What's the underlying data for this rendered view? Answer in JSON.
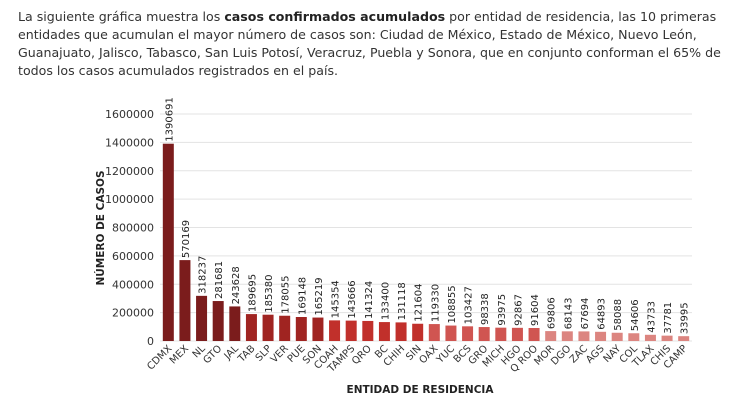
{
  "intro": {
    "before": "La siguiente gráfica muestra los ",
    "bold": "casos confirmados acumulados",
    "after": " por entidad de residencia, las 10 primeras entidades que acumulan el mayor número de casos son: Ciudad de México, Estado de México, Nuevo León, Guanajuato, Jalisco, Tabasco, San Luis Potosí, Veracruz, Puebla y Sonora, que en conjunto conforman el 65% de todos los casos acumulados registrados en el país."
  },
  "chart_data": {
    "type": "bar",
    "xlabel": "ENTIDAD DE RESIDENCIA",
    "ylabel": "NÚMERO DE CASOS",
    "ylim": [
      0,
      1600000
    ],
    "yticks": [
      0,
      200000,
      400000,
      600000,
      800000,
      1000000,
      1200000,
      1400000,
      1600000
    ],
    "grid": true,
    "categories": [
      "CDMX",
      "MEX",
      "NL",
      "GTO",
      "JAL",
      "TAB",
      "SLP",
      "VER",
      "PUE",
      "SON",
      "COAH",
      "TAMPS",
      "QRO",
      "BC",
      "CHIH",
      "SIN",
      "OAX",
      "YUC",
      "BCS",
      "GRO",
      "MICH",
      "HGO",
      "Q ROO",
      "MOR",
      "DGO",
      "ZAC",
      "AGS",
      "NAY",
      "COL",
      "TLAX",
      "CHIS",
      "CAMP"
    ],
    "values": [
      1390691,
      570169,
      318237,
      281681,
      243628,
      189695,
      185380,
      178055,
      169148,
      165219,
      145354,
      143666,
      141324,
      133400,
      131118,
      121604,
      119330,
      108855,
      103427,
      98338,
      93975,
      92867,
      91604,
      69806,
      68143,
      67694,
      64893,
      58088,
      54606,
      43733,
      37781,
      33995
    ],
    "colors": [
      "#7b1c1c",
      "#7b1c1c",
      "#7b1c1c",
      "#7b1c1c",
      "#7b1c1c",
      "#a02421",
      "#a02421",
      "#a02421",
      "#a02421",
      "#a02421",
      "#c1302b",
      "#c1302b",
      "#c1302b",
      "#c1302b",
      "#c1302b",
      "#c1302b",
      "#d05551",
      "#d05551",
      "#d05551",
      "#d05551",
      "#d05551",
      "#d05551",
      "#d05551",
      "#dc8580",
      "#dc8580",
      "#dc8580",
      "#dc8580",
      "#dc8580",
      "#dc8580",
      "#dc8580",
      "#dc8580",
      "#dc8580"
    ]
  }
}
